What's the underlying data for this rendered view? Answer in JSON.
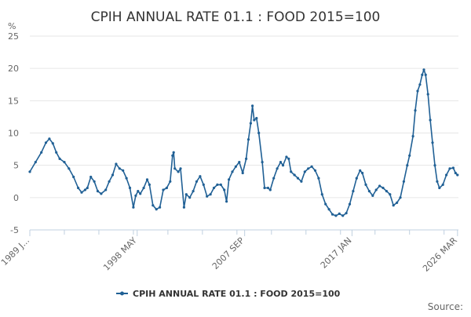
{
  "chart_data": {
    "type": "line",
    "title": "CPIH ANNUAL RATE 01.1 : FOOD 2015=100",
    "ylabel": "%",
    "ylim": [
      -5,
      25
    ],
    "yticks": [
      -5,
      0,
      5,
      10,
      15,
      20,
      25
    ],
    "xlim": [
      1989.0,
      2026.25
    ],
    "x_tick_labels": [
      "1989 J...",
      "1998 MAY",
      "2007 SEP",
      "2017 JAN",
      "2026 MAR"
    ],
    "x_tick_positions": [
      1989.0,
      1998.33,
      2007.67,
      2017.0,
      2026.17
    ],
    "legend": "CPIH ANNUAL RATE 01.1 : FOOD 2015=100",
    "source_label": "Source:",
    "color": "#206095",
    "series": [
      {
        "name": "CPIH ANNUAL RATE 01.1 : FOOD 2015=100",
        "points": [
          [
            1989.0,
            4.0
          ],
          [
            1989.5,
            5.5
          ],
          [
            1990.0,
            7.0
          ],
          [
            1990.4,
            8.5
          ],
          [
            1990.7,
            9.1
          ],
          [
            1991.0,
            8.4
          ],
          [
            1991.3,
            7.0
          ],
          [
            1991.6,
            6.0
          ],
          [
            1992.0,
            5.5
          ],
          [
            1992.4,
            4.5
          ],
          [
            1992.8,
            3.2
          ],
          [
            1993.2,
            1.5
          ],
          [
            1993.5,
            0.8
          ],
          [
            1993.8,
            1.2
          ],
          [
            1994.0,
            1.5
          ],
          [
            1994.3,
            3.2
          ],
          [
            1994.6,
            2.5
          ],
          [
            1994.9,
            1.0
          ],
          [
            1995.2,
            0.6
          ],
          [
            1995.6,
            1.2
          ],
          [
            1995.9,
            2.5
          ],
          [
            1996.2,
            3.5
          ],
          [
            1996.5,
            5.2
          ],
          [
            1996.8,
            4.5
          ],
          [
            1997.1,
            4.2
          ],
          [
            1997.4,
            3.0
          ],
          [
            1997.7,
            1.5
          ],
          [
            1998.0,
            -1.5
          ],
          [
            1998.2,
            0.3
          ],
          [
            1998.4,
            1.0
          ],
          [
            1998.6,
            0.6
          ],
          [
            1998.9,
            1.5
          ],
          [
            1999.2,
            2.8
          ],
          [
            1999.4,
            2.0
          ],
          [
            1999.7,
            -1.2
          ],
          [
            2000.0,
            -1.8
          ],
          [
            2000.3,
            -1.5
          ],
          [
            2000.6,
            1.2
          ],
          [
            2000.9,
            1.5
          ],
          [
            2001.2,
            2.5
          ],
          [
            2001.4,
            6.5
          ],
          [
            2001.5,
            7.0
          ],
          [
            2001.6,
            4.5
          ],
          [
            2001.9,
            4.0
          ],
          [
            2002.1,
            4.5
          ],
          [
            2002.4,
            -1.5
          ],
          [
            2002.6,
            0.5
          ],
          [
            2002.9,
            0.0
          ],
          [
            2003.2,
            1.0
          ],
          [
            2003.5,
            2.5
          ],
          [
            2003.8,
            3.3
          ],
          [
            2004.1,
            2.0
          ],
          [
            2004.4,
            0.2
          ],
          [
            2004.7,
            0.5
          ],
          [
            2005.0,
            1.5
          ],
          [
            2005.3,
            2.0
          ],
          [
            2005.6,
            2.0
          ],
          [
            2005.9,
            1.2
          ],
          [
            2006.1,
            -0.6
          ],
          [
            2006.3,
            2.8
          ],
          [
            2006.6,
            4.0
          ],
          [
            2006.9,
            4.8
          ],
          [
            2007.2,
            5.5
          ],
          [
            2007.5,
            3.8
          ],
          [
            2007.8,
            6.0
          ],
          [
            2008.0,
            9.0
          ],
          [
            2008.2,
            11.5
          ],
          [
            2008.35,
            14.2
          ],
          [
            2008.5,
            12.0
          ],
          [
            2008.7,
            12.3
          ],
          [
            2008.9,
            10.0
          ],
          [
            2009.2,
            5.5
          ],
          [
            2009.4,
            1.5
          ],
          [
            2009.7,
            1.5
          ],
          [
            2009.9,
            1.2
          ],
          [
            2010.2,
            3.0
          ],
          [
            2010.5,
            4.5
          ],
          [
            2010.8,
            5.5
          ],
          [
            2011.0,
            5.0
          ],
          [
            2011.3,
            6.3
          ],
          [
            2011.5,
            6.0
          ],
          [
            2011.7,
            4.0
          ],
          [
            2012.0,
            3.5
          ],
          [
            2012.3,
            3.0
          ],
          [
            2012.6,
            2.5
          ],
          [
            2012.9,
            4.0
          ],
          [
            2013.2,
            4.5
          ],
          [
            2013.5,
            4.8
          ],
          [
            2013.8,
            4.2
          ],
          [
            2014.1,
            3.0
          ],
          [
            2014.4,
            0.5
          ],
          [
            2014.7,
            -1.0
          ],
          [
            2015.0,
            -1.8
          ],
          [
            2015.3,
            -2.6
          ],
          [
            2015.6,
            -2.8
          ],
          [
            2015.9,
            -2.5
          ],
          [
            2016.2,
            -2.8
          ],
          [
            2016.5,
            -2.4
          ],
          [
            2016.8,
            -1.0
          ],
          [
            2017.1,
            1.0
          ],
          [
            2017.4,
            3.0
          ],
          [
            2017.7,
            4.2
          ],
          [
            2017.9,
            3.8
          ],
          [
            2018.2,
            2.0
          ],
          [
            2018.5,
            1.0
          ],
          [
            2018.8,
            0.3
          ],
          [
            2019.1,
            1.2
          ],
          [
            2019.4,
            1.8
          ],
          [
            2019.7,
            1.5
          ],
          [
            2020.0,
            1.0
          ],
          [
            2020.3,
            0.5
          ],
          [
            2020.6,
            -1.2
          ],
          [
            2020.9,
            -0.8
          ],
          [
            2021.2,
            0.0
          ],
          [
            2021.5,
            2.5
          ],
          [
            2021.8,
            5.0
          ],
          [
            2022.0,
            6.5
          ],
          [
            2022.3,
            9.5
          ],
          [
            2022.5,
            13.5
          ],
          [
            2022.7,
            16.5
          ],
          [
            2022.9,
            17.5
          ],
          [
            2023.1,
            19.0
          ],
          [
            2023.25,
            19.8
          ],
          [
            2023.4,
            19.0
          ],
          [
            2023.6,
            16.0
          ],
          [
            2023.8,
            12.0
          ],
          [
            2024.0,
            8.5
          ],
          [
            2024.2,
            5.0
          ],
          [
            2024.4,
            2.5
          ],
          [
            2024.6,
            1.5
          ],
          [
            2024.9,
            2.0
          ],
          [
            2025.2,
            3.5
          ],
          [
            2025.5,
            4.5
          ],
          [
            2025.8,
            4.6
          ],
          [
            2026.0,
            3.8
          ],
          [
            2026.17,
            3.5
          ]
        ]
      }
    ]
  }
}
